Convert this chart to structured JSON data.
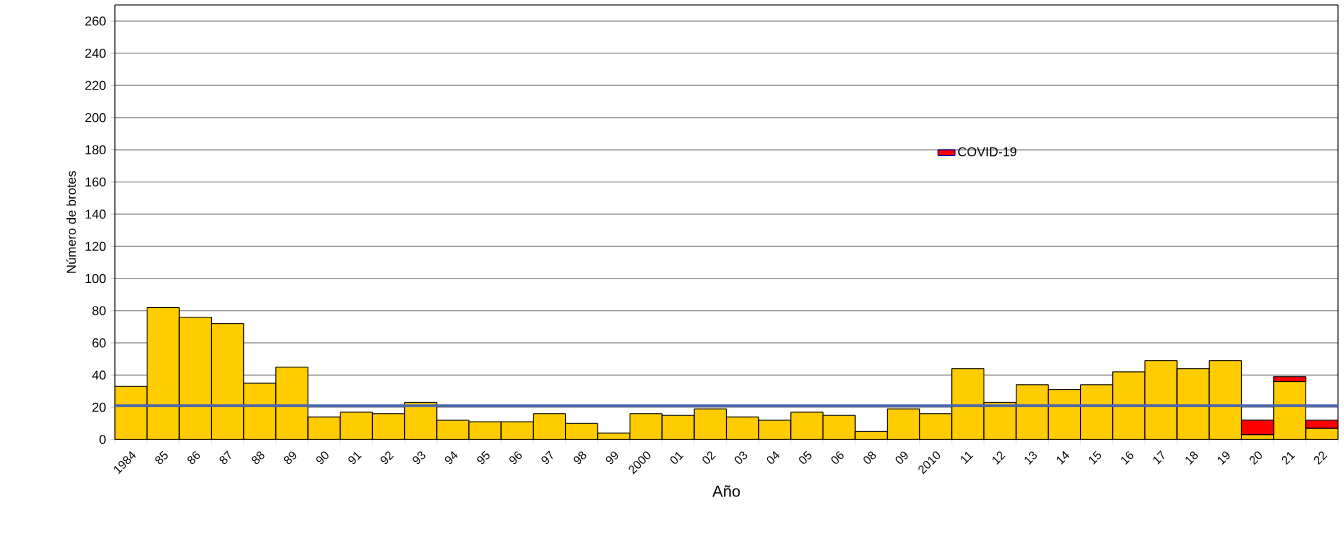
{
  "chart_data": {
    "type": "bar",
    "stacked": true,
    "xlabel": "Año",
    "ylabel": "Número de brotes",
    "categories": [
      "1984",
      "85",
      "86",
      "87",
      "88",
      "89",
      "90",
      "91",
      "92",
      "93",
      "94",
      "95",
      "96",
      "97",
      "98",
      "99",
      "2000",
      "01",
      "02",
      "03",
      "04",
      "05",
      "06",
      "08",
      "09",
      "2010",
      "11",
      "12",
      "13",
      "14",
      "15",
      "16",
      "17",
      "18",
      "19",
      "20",
      "21",
      "22"
    ],
    "series": [
      {
        "color": "#ffcc00",
        "values": [
          33,
          82,
          76,
          72,
          35,
          45,
          14,
          17,
          16,
          23,
          12,
          11,
          11,
          16,
          10,
          4,
          16,
          15,
          19,
          14,
          12,
          17,
          15,
          5,
          19,
          16,
          44,
          23,
          34,
          31,
          34,
          42,
          49,
          44,
          49,
          3,
          36,
          7
        ]
      },
      {
        "name": "COVID-19",
        "color": "#ff0000",
        "values": [
          null,
          null,
          null,
          null,
          null,
          null,
          null,
          null,
          null,
          null,
          null,
          null,
          null,
          null,
          null,
          null,
          null,
          null,
          null,
          null,
          null,
          null,
          null,
          null,
          null,
          null,
          null,
          null,
          null,
          null,
          null,
          null,
          null,
          null,
          null,
          9,
          3,
          5
        ]
      }
    ],
    "ylim": [
      0,
      270
    ],
    "yticks": [
      0,
      20,
      40,
      60,
      80,
      100,
      120,
      140,
      160,
      180,
      200,
      220,
      240,
      260
    ],
    "ref_lines": [
      {
        "axis": "y",
        "value": 21,
        "color": "#4a67ad"
      }
    ],
    "grid": "y",
    "legend": "right"
  }
}
